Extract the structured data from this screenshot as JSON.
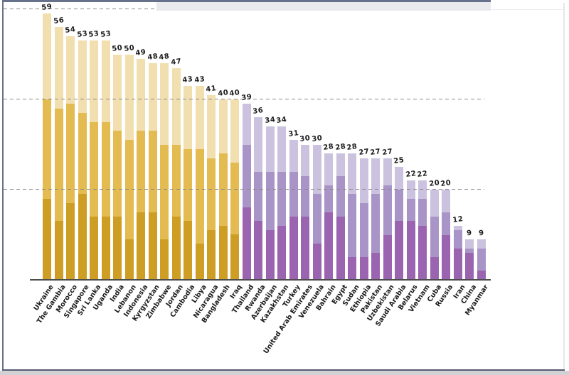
{
  "chart_data": {
    "type": "bar",
    "subtype": "stacked",
    "title": "",
    "xlabel": "",
    "ylabel": "",
    "ylim": [
      0,
      60
    ],
    "gridline_values": [
      20,
      40,
      60
    ],
    "grid_style": "dashed",
    "legend": "none",
    "series_colors": {
      "gold_light": "#f1dfaf",
      "gold_medium": "#e3bb50",
      "gold_dark": "#cd9d24",
      "purple_light": "#cac2de",
      "purple_medium": "#a994c7",
      "purple_dark": "#9b64b0",
      "axis": "#4d4d4d",
      "gridline": "#8a8a8a"
    },
    "bars": [
      {
        "label": "Ukraine",
        "group": "gold",
        "total": 59,
        "dark": 18,
        "medium": 22,
        "light": 19
      },
      {
        "label": "The Gambia",
        "group": "gold",
        "total": 56,
        "dark": 13,
        "medium": 25,
        "light": 18
      },
      {
        "label": "Morocco",
        "group": "gold",
        "total": 54,
        "dark": 17,
        "medium": 22,
        "light": 15
      },
      {
        "label": "Singapore",
        "group": "gold",
        "total": 53,
        "dark": 19,
        "medium": 18,
        "light": 16
      },
      {
        "label": "Sri Lanka",
        "group": "gold",
        "total": 53,
        "dark": 14,
        "medium": 21,
        "light": 18
      },
      {
        "label": "Uganda",
        "group": "gold",
        "total": 53,
        "dark": 14,
        "medium": 21,
        "light": 18
      },
      {
        "label": "India",
        "group": "gold",
        "total": 50,
        "dark": 14,
        "medium": 19,
        "light": 17
      },
      {
        "label": "Lebanon",
        "group": "gold",
        "total": 50,
        "dark": 9,
        "medium": 22,
        "light": 19
      },
      {
        "label": "Indonesia",
        "group": "gold",
        "total": 49,
        "dark": 15,
        "medium": 18,
        "light": 16
      },
      {
        "label": "Kyrgyzstan",
        "group": "gold",
        "total": 48,
        "dark": 15,
        "medium": 18,
        "light": 15
      },
      {
        "label": "Zimbabwe",
        "group": "gold",
        "total": 48,
        "dark": 9,
        "medium": 21,
        "light": 18
      },
      {
        "label": "Jordan",
        "group": "gold",
        "total": 47,
        "dark": 14,
        "medium": 16,
        "light": 17
      },
      {
        "label": "Cambodia",
        "group": "gold",
        "total": 43,
        "dark": 13,
        "medium": 16,
        "light": 14
      },
      {
        "label": "Libya",
        "group": "gold",
        "total": 43,
        "dark": 8,
        "medium": 21,
        "light": 14
      },
      {
        "label": "Nicaragua",
        "group": "gold",
        "total": 41,
        "dark": 11,
        "medium": 16,
        "light": 14
      },
      {
        "label": "Bangladesh",
        "group": "gold",
        "total": 40,
        "dark": 12,
        "medium": 16,
        "light": 12
      },
      {
        "label": "Iraq",
        "group": "gold",
        "total": 40,
        "dark": 10,
        "medium": 16,
        "light": 14
      },
      {
        "label": "Thailand",
        "group": "purple",
        "total": 39,
        "dark": 16,
        "medium": 14,
        "light": 9
      },
      {
        "label": "Rwanda",
        "group": "purple",
        "total": 36,
        "dark": 13,
        "medium": 11,
        "light": 12
      },
      {
        "label": "Azerbaijan",
        "group": "purple",
        "total": 34,
        "dark": 11,
        "medium": 13,
        "light": 10
      },
      {
        "label": "Kazakhstan",
        "group": "purple",
        "total": 34,
        "dark": 12,
        "medium": 12,
        "light": 10
      },
      {
        "label": "Turkey",
        "group": "purple",
        "total": 31,
        "dark": 14,
        "medium": 10,
        "light": 7
      },
      {
        "label": "United Arab Emirates",
        "group": "purple",
        "total": 30,
        "dark": 14,
        "medium": 9,
        "light": 7
      },
      {
        "label": "Venezuela",
        "group": "purple",
        "total": 30,
        "dark": 8,
        "medium": 11,
        "light": 11
      },
      {
        "label": "Bahrain",
        "group": "purple",
        "total": 28,
        "dark": 15,
        "medium": 6,
        "light": 7
      },
      {
        "label": "Egypt",
        "group": "purple",
        "total": 28,
        "dark": 14,
        "medium": 9,
        "light": 5
      },
      {
        "label": "Sudan",
        "group": "purple",
        "total": 28,
        "dark": 5,
        "medium": 14,
        "light": 9
      },
      {
        "label": "Ethiopia",
        "group": "purple",
        "total": 27,
        "dark": 5,
        "medium": 12,
        "light": 10
      },
      {
        "label": "Pakistan",
        "group": "purple",
        "total": 27,
        "dark": 6,
        "medium": 13,
        "light": 8
      },
      {
        "label": "Uzbekistan",
        "group": "purple",
        "total": 27,
        "dark": 10,
        "medium": 11,
        "light": 6
      },
      {
        "label": "Saudi Arabia",
        "group": "purple",
        "total": 25,
        "dark": 13,
        "medium": 7,
        "light": 5
      },
      {
        "label": "Belarus",
        "group": "purple",
        "total": 22,
        "dark": 13,
        "medium": 5,
        "light": 4
      },
      {
        "label": "Vietnam",
        "group": "purple",
        "total": 22,
        "dark": 12,
        "medium": 6,
        "light": 4
      },
      {
        "label": "Cuba",
        "group": "purple",
        "total": 20,
        "dark": 5,
        "medium": 9,
        "light": 6
      },
      {
        "label": "Russia",
        "group": "purple",
        "total": 20,
        "dark": 10,
        "medium": 5,
        "light": 5
      },
      {
        "label": "Iran",
        "group": "purple",
        "total": 12,
        "dark": 7,
        "medium": 4,
        "light": 1
      },
      {
        "label": "China",
        "group": "purple",
        "total": 9,
        "dark": 6,
        "medium": 1,
        "light": 2
      },
      {
        "label": "Myanmar",
        "group": "purple",
        "total": 9,
        "dark": 2,
        "medium": 5,
        "light": 2
      }
    ]
  }
}
